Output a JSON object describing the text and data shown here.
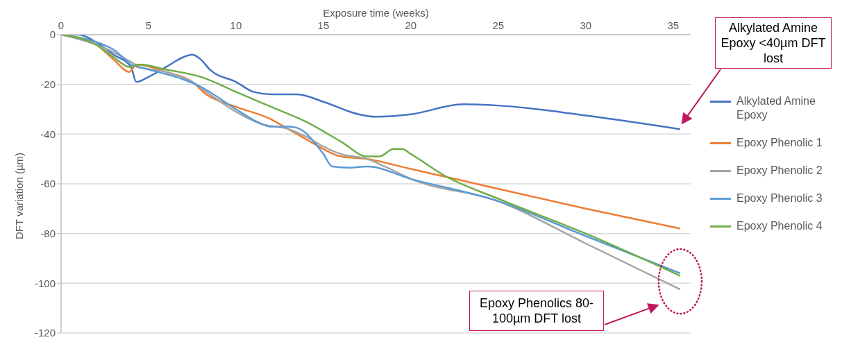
{
  "chart_data": {
    "type": "line",
    "xlabel": "Exposure time (weeks)",
    "ylabel": "DFT variation (µm)",
    "xlim": [
      0,
      36
    ],
    "xticks": [
      0,
      5,
      10,
      15,
      20,
      25,
      30,
      35
    ],
    "ylim": [
      -120,
      0
    ],
    "yticks": [
      -120,
      -100,
      -80,
      -60,
      -40,
      -20,
      0
    ],
    "grid": "y",
    "legend": "right",
    "marker": "none",
    "line_style": "solid",
    "series": [
      {
        "name": "Alkylated Amine Epoxy",
        "color": "#4472c4",
        "x": [
          0,
          1,
          2,
          3,
          4,
          4.3,
          5,
          6,
          7,
          7.5,
          8,
          8.5,
          10,
          11,
          12,
          13.5,
          15,
          17,
          18,
          20,
          23,
          25,
          30,
          35.4
        ],
        "values": [
          0,
          0,
          -3,
          -8,
          -13,
          -19,
          -17,
          -13,
          -9,
          -8,
          -10,
          -14,
          -19,
          -23,
          -24,
          -24,
          -27,
          -32,
          -33,
          -32,
          -28,
          -28.5,
          -32.5,
          -38
        ]
      },
      {
        "name": "Epoxy Phenolic 1",
        "color": "#ed7d31",
        "x": [
          0,
          2,
          3,
          3.9,
          4.3,
          6,
          7.5,
          8.3,
          10,
          12,
          13,
          14,
          15,
          16,
          17.5,
          20,
          25,
          30,
          35.4
        ],
        "values": [
          0,
          -4,
          -10,
          -15,
          -12,
          -15,
          -19,
          -24,
          -29,
          -34,
          -38,
          -42,
          -46,
          -49,
          -50,
          -54,
          -62,
          -70,
          -78
        ]
      },
      {
        "name": "Epoxy Phenolic 2",
        "color": "#a5a5a5",
        "x": [
          0,
          2,
          3,
          4,
          4.5,
          6,
          7.5,
          8.5,
          10,
          11.5,
          13,
          14,
          15,
          16,
          17.5,
          18.5,
          20,
          25,
          30,
          35.4
        ],
        "values": [
          0,
          -4,
          -7,
          -11,
          -13,
          -15,
          -19,
          -24,
          -31,
          -36,
          -38,
          -41,
          -45,
          -48,
          -50,
          -53,
          -58,
          -67,
          -84,
          -102.5
        ]
      },
      {
        "name": "Epoxy Phenolic 3",
        "color": "#5b9bd5",
        "x": [
          0,
          3,
          4,
          5,
          7,
          8,
          10,
          11.5,
          12,
          13,
          13.5,
          15,
          15.5,
          16.5,
          17.5,
          20,
          25,
          30,
          35.4
        ],
        "values": [
          0,
          -6,
          -12,
          -14,
          -18,
          -21,
          -30,
          -36,
          -37,
          -37,
          -37.5,
          -48,
          -53,
          -53.5,
          -53,
          -58,
          -67,
          -81,
          -96
        ]
      },
      {
        "name": "Epoxy Phenolic 4",
        "color": "#70ad47",
        "x": [
          0,
          2,
          3,
          3.9,
          4.5,
          6,
          8,
          10,
          12,
          14,
          16,
          17.5,
          18.2,
          19,
          19.5,
          20,
          22,
          25,
          30,
          35.4
        ],
        "values": [
          0,
          -4,
          -9,
          -13,
          -12,
          -14,
          -17,
          -23,
          -29,
          -35,
          -43,
          -49,
          -49,
          -46,
          -46,
          -48,
          -57,
          -66,
          -80,
          -97
        ]
      }
    ],
    "annotations": [
      "Alkylated Amine Epoxy <40µm DFT lost",
      "Epoxy Phenolics 80-100µm DFT lost"
    ]
  }
}
